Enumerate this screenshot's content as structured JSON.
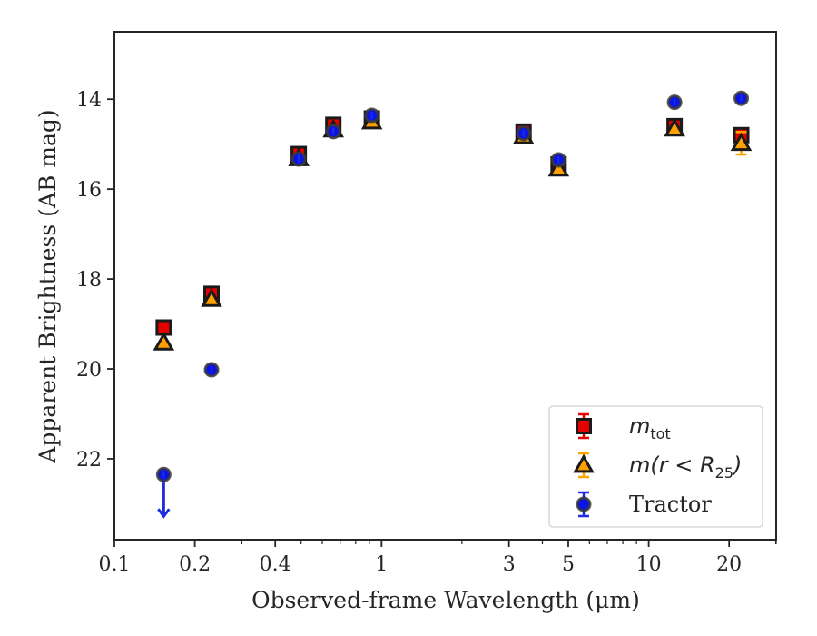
{
  "chart_data": {
    "type": "scatter",
    "xlabel": "Observed-frame Wavelength (μm)",
    "ylabel": "Apparent Brightness (AB mag)",
    "xscale": "log",
    "xlim": [
      0.1,
      30
    ],
    "ylim": [
      23.8,
      12.5
    ],
    "y_inverted": true,
    "grid": false,
    "legend_position": "lower-right",
    "x_ticks": [
      {
        "value": 0.1,
        "label": "0.1"
      },
      {
        "value": 0.2,
        "label": "0.2"
      },
      {
        "value": 0.4,
        "label": "0.4"
      },
      {
        "value": 1,
        "label": "1"
      },
      {
        "value": 3,
        "label": "3"
      },
      {
        "value": 5,
        "label": "5"
      },
      {
        "value": 10,
        "label": "10"
      },
      {
        "value": 20,
        "label": "20"
      }
    ],
    "y_ticks": [
      {
        "value": 14,
        "label": "14"
      },
      {
        "value": 16,
        "label": "16"
      },
      {
        "value": 18,
        "label": "18"
      },
      {
        "value": 20,
        "label": "20"
      },
      {
        "value": 22,
        "label": "22"
      }
    ],
    "series": [
      {
        "name": "m_tot",
        "legend_main": "m",
        "legend_sub": "tot",
        "marker": "square",
        "fill": "#e50000",
        "edge": "#1a1a1a",
        "error_color": "#e50000",
        "points": [
          {
            "x": 0.153,
            "y": 19.08
          },
          {
            "x": 0.231,
            "y": 18.33
          },
          {
            "x": 0.49,
            "y": 15.22
          },
          {
            "x": 0.66,
            "y": 14.57
          },
          {
            "x": 0.92,
            "y": 14.43
          },
          {
            "x": 3.4,
            "y": 14.72
          },
          {
            "x": 4.6,
            "y": 15.45
          },
          {
            "x": 12.5,
            "y": 14.6
          },
          {
            "x": 22.2,
            "y": 14.8
          }
        ]
      },
      {
        "name": "m(r < R_25)",
        "legend_main": "m(r < R",
        "legend_sub": "25",
        "legend_tail": ")",
        "marker": "triangle",
        "fill": "#ff9f00",
        "edge": "#1a1a1a",
        "error_color": "#ffa500",
        "points": [
          {
            "x": 0.153,
            "y": 19.42
          },
          {
            "x": 0.231,
            "y": 18.45
          },
          {
            "x": 0.49,
            "y": 15.32
          },
          {
            "x": 0.66,
            "y": 14.68
          },
          {
            "x": 0.92,
            "y": 14.5
          },
          {
            "x": 3.4,
            "y": 14.83
          },
          {
            "x": 4.6,
            "y": 15.55
          },
          {
            "x": 12.5,
            "y": 14.66
          },
          {
            "x": 22.2,
            "y": 14.98,
            "err": 0.25
          }
        ]
      },
      {
        "name": "Tractor",
        "legend_main": "Tractor",
        "marker": "circle",
        "fill": "#0a14e6",
        "edge": "#3a3a3a",
        "error_color": "#1f2de0",
        "points": [
          {
            "x": 0.153,
            "y": 22.35,
            "upper_limit": true
          },
          {
            "x": 0.231,
            "y": 20.02
          },
          {
            "x": 0.49,
            "y": 15.33
          },
          {
            "x": 0.66,
            "y": 14.72
          },
          {
            "x": 0.92,
            "y": 14.36
          },
          {
            "x": 3.4,
            "y": 14.76
          },
          {
            "x": 4.6,
            "y": 15.35
          },
          {
            "x": 12.5,
            "y": 14.07
          },
          {
            "x": 22.2,
            "y": 13.98
          }
        ]
      }
    ]
  }
}
